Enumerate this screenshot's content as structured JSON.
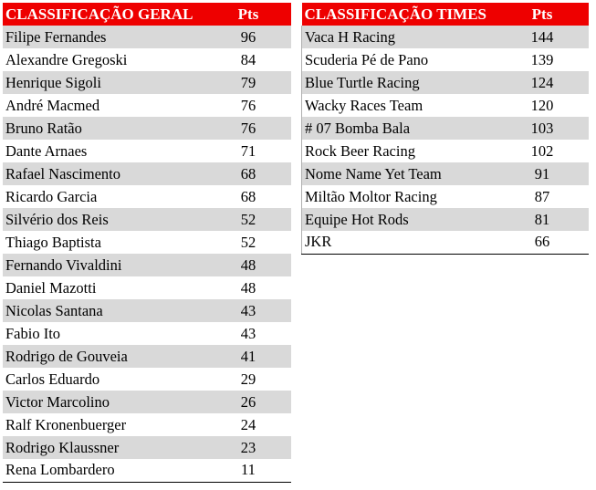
{
  "drivers": {
    "title": "CLASSIFICAÇÃO GERAL",
    "pts_header": "Pts",
    "rows": [
      {
        "name": "Filipe Fernandes",
        "pts": "96"
      },
      {
        "name": "Alexandre Gregoski",
        "pts": "84"
      },
      {
        "name": "Henrique Sigoli",
        "pts": "79"
      },
      {
        "name": "André Macmed",
        "pts": "76"
      },
      {
        "name": "Bruno Ratão",
        "pts": "76"
      },
      {
        "name": "Dante Arnaes",
        "pts": "71"
      },
      {
        "name": "Rafael Nascimento",
        "pts": "68"
      },
      {
        "name": "Ricardo Garcia",
        "pts": "68"
      },
      {
        "name": "Silvério dos Reis",
        "pts": "52"
      },
      {
        "name": "Thiago Baptista",
        "pts": "52"
      },
      {
        "name": "Fernando Vivaldini",
        "pts": "48"
      },
      {
        "name": "Daniel Mazotti",
        "pts": "48"
      },
      {
        "name": "Nicolas Santana",
        "pts": "43"
      },
      {
        "name": "Fabio Ito",
        "pts": "43"
      },
      {
        "name": "Rodrigo de Gouveia",
        "pts": "41"
      },
      {
        "name": "Carlos Eduardo",
        "pts": "29"
      },
      {
        "name": "Victor Marcolino",
        "pts": "26"
      },
      {
        "name": "Ralf Kronenbuerger",
        "pts": "24"
      },
      {
        "name": "Rodrigo Klaussner",
        "pts": "23"
      },
      {
        "name": "Rena Lombardero",
        "pts": "11"
      }
    ]
  },
  "teams": {
    "title": "CLASSIFICAÇÃO TIMES",
    "pts_header": "Pts",
    "rows": [
      {
        "name": "Vaca H Racing",
        "pts": "144"
      },
      {
        "name": "Scuderia Pé de Pano",
        "pts": "139"
      },
      {
        "name": "Blue Turtle Racing",
        "pts": "124"
      },
      {
        "name": "Wacky Races Team",
        "pts": "120"
      },
      {
        "name": "# 07 Bomba Bala",
        "pts": "103"
      },
      {
        "name": "Rock Beer Racing",
        "pts": "102"
      },
      {
        "name": "Nome Name Yet Team",
        "pts": "91"
      },
      {
        "name": "Miltão Moltor Racing",
        "pts": "87"
      },
      {
        "name": "Equipe Hot Rods",
        "pts": "81"
      },
      {
        "name": "JKR",
        "pts": "66"
      }
    ]
  },
  "colors": {
    "header_bg": "#ee0000",
    "header_text": "#ffffff",
    "row_shade": "#d9d9d9"
  }
}
